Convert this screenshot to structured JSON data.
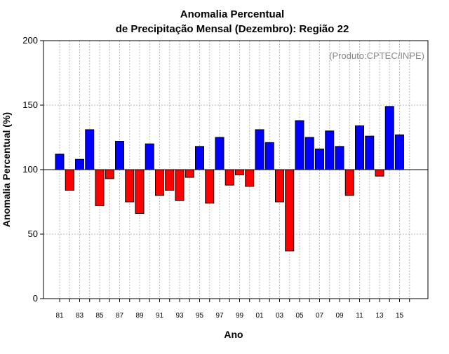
{
  "chart_data": {
    "type": "bar",
    "title_line1": "Anomalia Percentual",
    "title_line2": "de Precipitação Mensal (Dezembro): Região 22",
    "credit": "(Produto:CPTEC/INPE)",
    "xlabel": "Ano",
    "ylabel": "Anomalia Percentual (%)",
    "ylim": [
      0,
      200
    ],
    "yticks": [
      0,
      50,
      100,
      150,
      200
    ],
    "baseline": 100,
    "grid": true,
    "categories": [
      "81",
      "82",
      "83",
      "84",
      "85",
      "86",
      "87",
      "88",
      "89",
      "90",
      "91",
      "92",
      "93",
      "94",
      "95",
      "96",
      "97",
      "98",
      "99",
      "00",
      "01",
      "02",
      "03",
      "04",
      "05",
      "06",
      "07",
      "08",
      "09",
      "10",
      "11",
      "12",
      "13",
      "14",
      "15",
      "16"
    ],
    "xtick_labels": [
      "81",
      "83",
      "85",
      "87",
      "89",
      "91",
      "93",
      "95",
      "97",
      "99",
      "01",
      "03",
      "05",
      "07",
      "09",
      "11",
      "13",
      "15"
    ],
    "values": [
      112,
      84,
      108,
      131,
      72,
      93,
      122,
      75,
      66,
      120,
      80,
      84,
      76,
      94,
      118,
      74,
      125,
      88,
      96,
      87,
      131,
      121,
      75,
      37,
      138,
      125,
      116,
      130,
      118,
      80,
      134,
      126,
      95,
      149,
      127,
      null
    ],
    "colors": {
      "above": "#0000ff",
      "below": "#ff0000",
      "grid": "#bbbbbb",
      "axis": "#000000"
    }
  }
}
